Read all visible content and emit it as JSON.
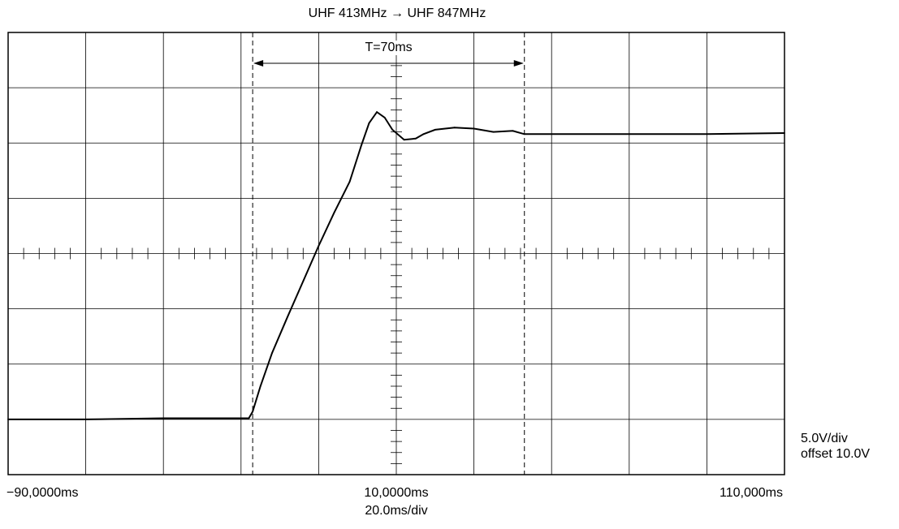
{
  "chart_data": {
    "type": "line",
    "title": "UHF 413MHz → UHF 847MHz",
    "xlabel": "",
    "ylabel": "",
    "x_unit": "ms",
    "xlim": [
      -90,
      110
    ],
    "ylim": [
      -10,
      30
    ],
    "x_divisions": 10,
    "y_divisions": 8,
    "x_per_div": 20,
    "y_per_div": 5,
    "x_tick_labels": {
      "left": "−90,0000ms",
      "center": "10,0000ms",
      "right": "110,000ms"
    },
    "time_per_div_label": "20.0ms/div",
    "volts_per_div_label": "5.0V/div",
    "offset_label": "offset 10.0V",
    "markers": {
      "x": [
        -27,
        43
      ],
      "label": "T=70ms"
    },
    "grid": true,
    "series": [
      {
        "color": "#000000",
        "x": [
          -90,
          -70,
          -50,
          -30,
          -28,
          -27,
          -25,
          -22,
          -18,
          -14,
          -10,
          -6,
          -2,
          0,
          1,
          3,
          5,
          7,
          9,
          12,
          15,
          17,
          20,
          25,
          30,
          35,
          40,
          43,
          50,
          70,
          90,
          110
        ],
        "y": [
          -5.0,
          -5.0,
          -4.9,
          -4.9,
          -4.9,
          -4.3,
          -2.0,
          1.0,
          4.3,
          7.5,
          10.7,
          13.7,
          16.5,
          18.7,
          19.8,
          21.8,
          22.8,
          22.3,
          21.2,
          20.3,
          20.4,
          20.8,
          21.2,
          21.4,
          21.3,
          21.0,
          21.1,
          20.8,
          20.8,
          20.8,
          20.8,
          20.9
        ]
      }
    ]
  },
  "colors": {
    "background": "#ffffff",
    "grid": "#000000",
    "trace": "#000000"
  }
}
